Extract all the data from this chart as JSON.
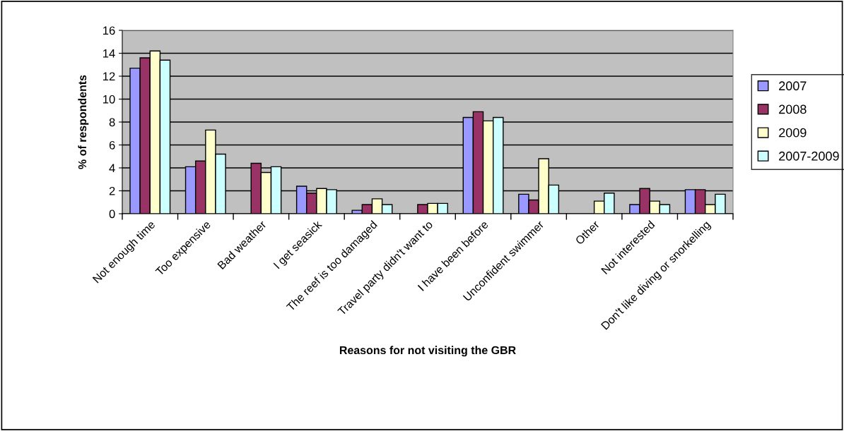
{
  "chart_data": {
    "type": "bar",
    "xlabel": "Reasons for not visiting the GBR",
    "ylabel": "% of respondents",
    "categories": [
      "Not enough time",
      "Too expensive",
      "Bad weather",
      "I get seasick",
      "The reef is too damaged",
      "Travel party didn't want to",
      "I have been before",
      "Unconfident swimmer",
      "Other",
      "Not interested",
      "Don't like diving or snorkelling"
    ],
    "series": [
      {
        "name": "2007",
        "color": "#9999ff",
        "values": [
          12.7,
          4.1,
          null,
          2.4,
          0.3,
          null,
          8.4,
          1.7,
          null,
          0.8,
          2.1
        ]
      },
      {
        "name": "2008",
        "color": "#993366",
        "values": [
          13.6,
          4.6,
          4.4,
          1.8,
          0.8,
          0.8,
          8.9,
          1.2,
          null,
          2.2,
          2.1
        ]
      },
      {
        "name": "2009",
        "color": "#ffffcc",
        "values": [
          14.2,
          7.3,
          3.6,
          2.2,
          1.3,
          0.9,
          8.1,
          4.8,
          1.1,
          1.1,
          0.8
        ]
      },
      {
        "name": "2007-2009",
        "color": "#ccffff",
        "values": [
          13.4,
          5.2,
          4.1,
          2.1,
          0.8,
          0.9,
          8.4,
          2.5,
          1.8,
          0.8,
          1.7
        ]
      }
    ],
    "ylim": [
      0,
      16
    ],
    "yticks": [
      0,
      2,
      4,
      6,
      8,
      10,
      12,
      14,
      16
    ],
    "grid": "y",
    "legend": "right"
  }
}
